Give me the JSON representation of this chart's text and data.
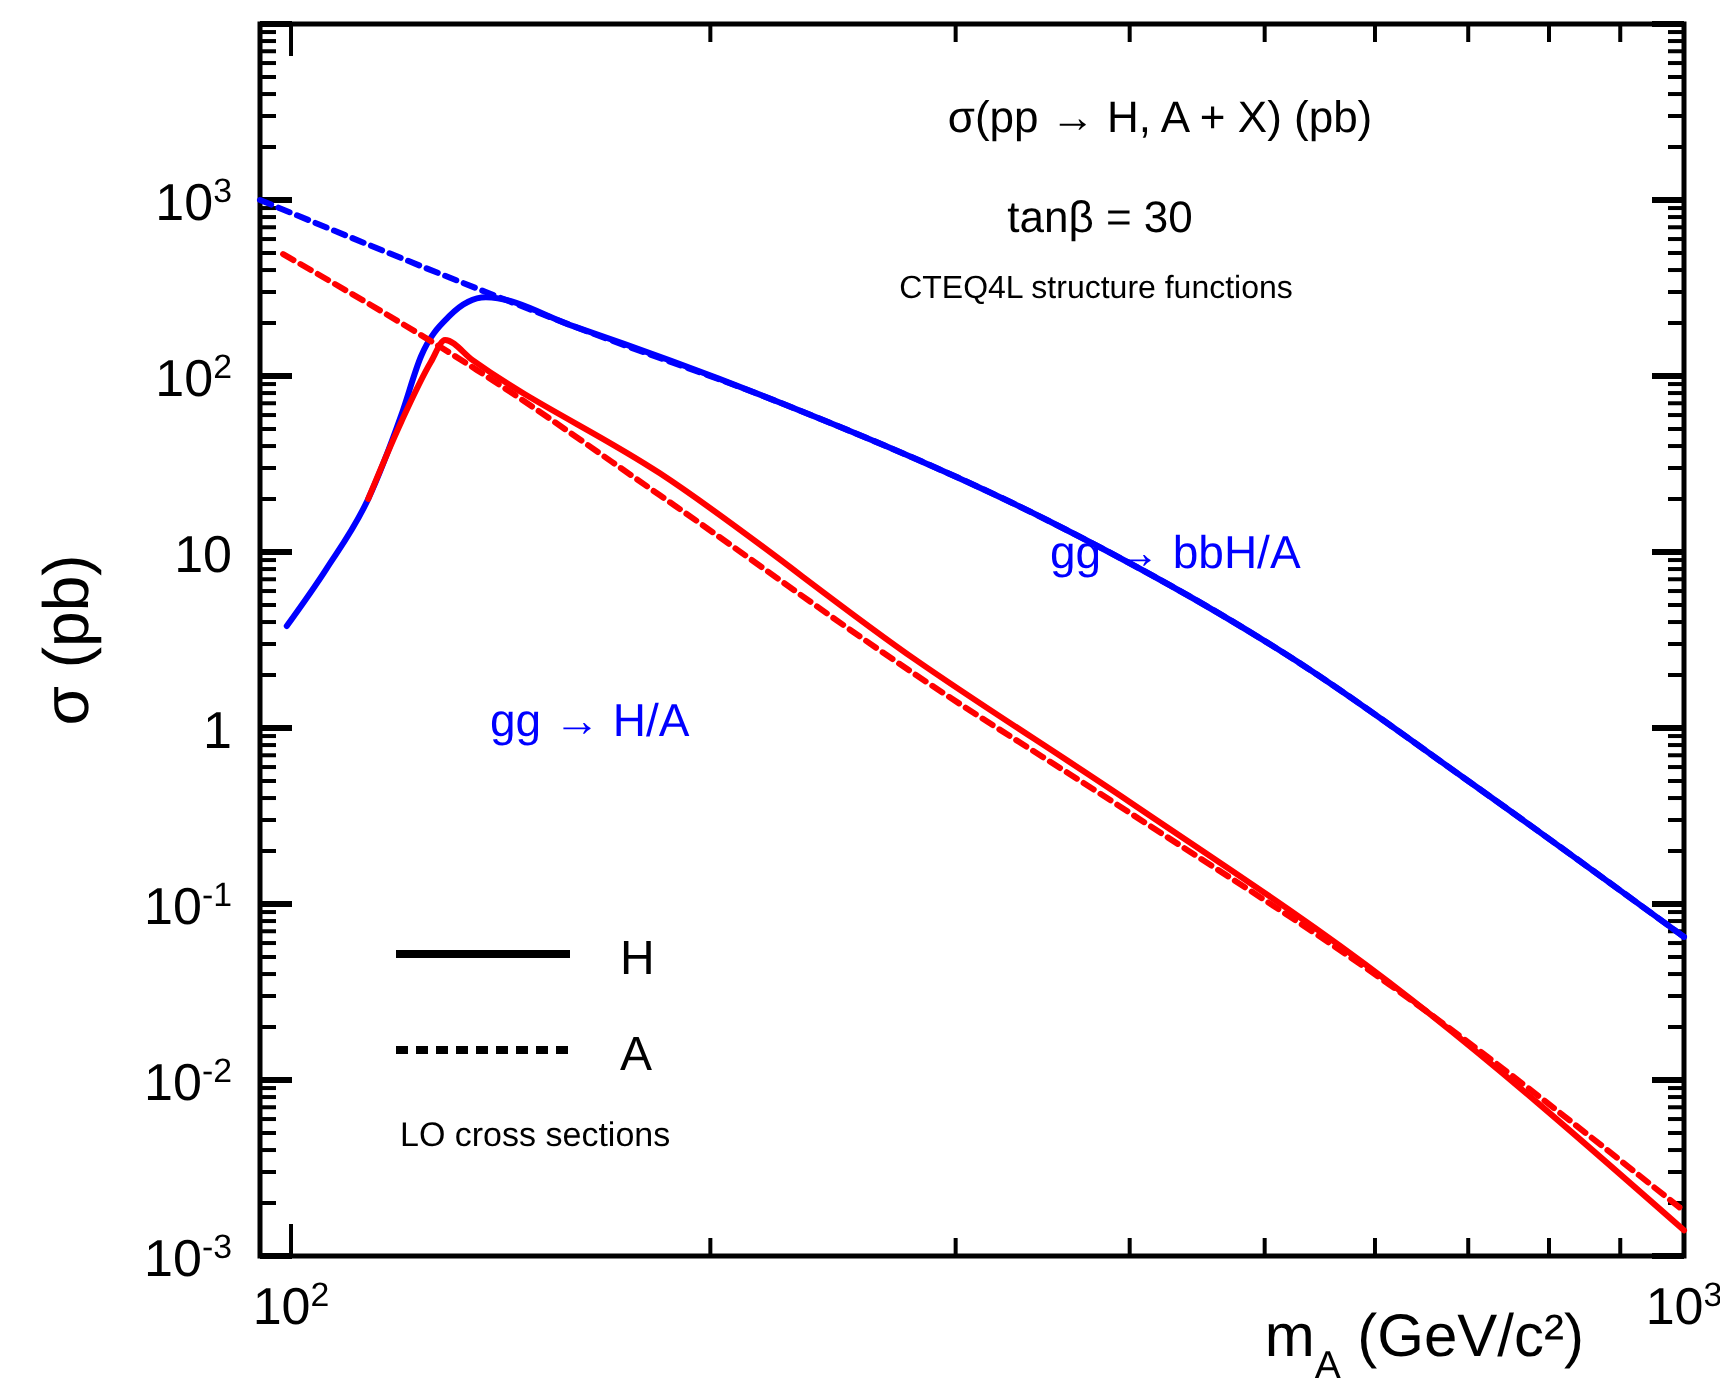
{
  "chart_data": {
    "type": "line",
    "title": "σ(pp → H, A + X) (pb)",
    "xlabel": "m$_{A}$ (GeV/c²)",
    "ylabel": "σ (pb)",
    "log": "xy",
    "xlim": [
      95,
      1000
    ],
    "ylim": [
      0.001,
      10000
    ],
    "xticks": [
      {
        "value": 100,
        "label": "10$^{2}$"
      },
      {
        "value": 200,
        "label": null
      },
      {
        "value": 300,
        "label": null
      },
      {
        "value": 400,
        "label": null
      },
      {
        "value": 500,
        "label": null
      },
      {
        "value": 600,
        "label": null
      },
      {
        "value": 700,
        "label": null
      },
      {
        "value": 800,
        "label": null
      },
      {
        "value": 900,
        "label": null
      },
      {
        "value": 1000,
        "label": "10$^{3}$"
      }
    ],
    "yticks": [
      {
        "value": 0.001,
        "label": "10$^{-3}$"
      },
      {
        "value": 0.01,
        "label": "10$^{-2}$"
      },
      {
        "value": 0.1,
        "label": "10$^{-1}$"
      },
      1,
      10,
      {
        "value": 100,
        "label": "10$^{2}$"
      },
      {
        "value": 1000,
        "label": "10$^{3}$"
      },
      {
        "value": 10000,
        "label": null
      }
    ],
    "annotations": [
      "tanβ = 30",
      "CTEQ4L structure functions",
      "LO cross sections",
      "gg → bbH/A",
      "gg → H/A",
      "H",
      "A"
    ],
    "series": [
      {
        "color": "#0000ff",
        "line_style": "solid",
        "x": [
          99.3,
          106,
          113.6,
          120,
          124,
          130,
          138,
          160,
          225,
          350,
          527,
          700,
          1000
        ],
        "values": [
          3.8,
          8,
          20,
          60,
          130,
          220,
          280,
          190,
          70,
          15,
          2.4,
          0.5,
          0.065
        ]
      },
      {
        "color": "#0000ff",
        "line_style": "dashed",
        "x": [
          95,
          138,
          160,
          225,
          350,
          527,
          700,
          1000
        ],
        "values": [
          1000,
          300,
          190,
          70,
          15,
          2.4,
          0.5,
          0.065
        ]
      },
      {
        "color": "#ff0000",
        "line_style": "solid",
        "x": [
          113.6,
          120,
          126,
          129,
          135,
          184,
          281,
          400,
          614,
          1000
        ],
        "values": [
          20,
          55,
          120,
          160,
          123,
          28,
          2.43,
          0.38,
          0.036,
          0.0014
        ]
      },
      {
        "color": "#ff0000",
        "line_style": "dashed",
        "x": [
          98.7,
          136,
          184,
          281,
          400,
          614,
          1000
        ],
        "values": [
          493,
          108,
          21,
          2.0,
          0.33,
          0.035,
          0.0018
        ]
      }
    ]
  }
}
